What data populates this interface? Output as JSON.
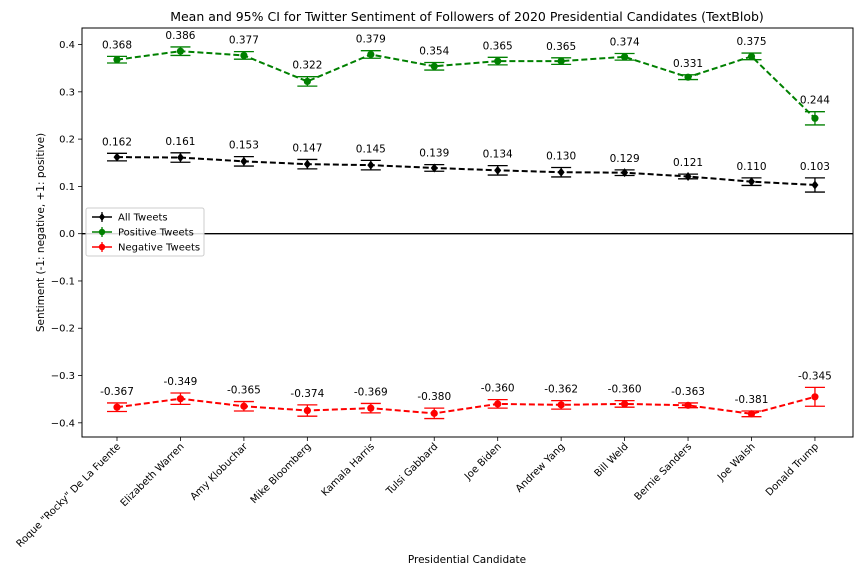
{
  "chart_data": {
    "type": "line",
    "title": "Mean and 95% CI for Twitter Sentiment of Followers of 2020 Presidential Candidates (TextBlob)",
    "xlabel": "Presidential Candidate",
    "ylabel": "Sentiment (-1: negative, +1: positive)",
    "ylim": [
      -0.43,
      0.435
    ],
    "yticks": [
      "0.4",
      "0.3",
      "0.2",
      "0.1",
      "0.0",
      "−0.1",
      "−0.2",
      "−0.3",
      "−0.4"
    ],
    "ytick_values": [
      0.4,
      0.3,
      0.2,
      0.1,
      0.0,
      -0.1,
      -0.2,
      -0.3,
      -0.4
    ],
    "categories": [
      "Roque \"Rocky\" De La Fuente",
      "Elizabeth Warren",
      "Amy Klobuchar",
      "Mike Bloomberg",
      "Kamala Harris",
      "Tulsi Gabbard",
      "Joe Biden",
      "Andrew Yang",
      "Bill Weld",
      "Bernie Sanders",
      "Joe Walsh",
      "Donald Trump"
    ],
    "legend_position": "center-left",
    "grid": false,
    "series": [
      {
        "name": "All Tweets",
        "color": "#000000",
        "marker": "diamond",
        "values": [
          0.162,
          0.161,
          0.153,
          0.147,
          0.145,
          0.139,
          0.134,
          0.13,
          0.129,
          0.121,
          0.11,
          0.103
        ],
        "labels": [
          "0.162",
          "0.161",
          "0.153",
          "0.147",
          "0.145",
          "0.139",
          "0.134",
          "0.130",
          "0.129",
          "0.121",
          "0.110",
          "0.103"
        ],
        "ci": [
          0.008,
          0.01,
          0.01,
          0.01,
          0.01,
          0.007,
          0.01,
          0.01,
          0.006,
          0.005,
          0.008,
          0.015
        ]
      },
      {
        "name": "Positive Tweets",
        "color": "#008000",
        "marker": "circle",
        "values": [
          0.368,
          0.386,
          0.377,
          0.322,
          0.379,
          0.354,
          0.365,
          0.365,
          0.374,
          0.331,
          0.375,
          0.244
        ],
        "labels": [
          "0.368",
          "0.386",
          "0.377",
          "0.322",
          "0.379",
          "0.354",
          "0.365",
          "0.365",
          "0.374",
          "0.331",
          "0.375",
          "0.244"
        ],
        "ci": [
          0.007,
          0.009,
          0.008,
          0.01,
          0.008,
          0.008,
          0.008,
          0.007,
          0.007,
          0.005,
          0.007,
          0.014
        ]
      },
      {
        "name": "Negative Tweets",
        "color": "#ff0000",
        "marker": "circle",
        "values": [
          -0.367,
          -0.349,
          -0.365,
          -0.374,
          -0.369,
          -0.38,
          -0.36,
          -0.362,
          -0.36,
          -0.363,
          -0.381,
          -0.345
        ],
        "labels": [
          "-0.367",
          "-0.349",
          "-0.365",
          "-0.374",
          "-0.369",
          "-0.380",
          "-0.360",
          "-0.362",
          "-0.360",
          "-0.363",
          "-0.381",
          "-0.345"
        ],
        "ci": [
          0.009,
          0.012,
          0.01,
          0.012,
          0.01,
          0.011,
          0.009,
          0.009,
          0.007,
          0.005,
          0.006,
          0.02
        ]
      }
    ]
  }
}
